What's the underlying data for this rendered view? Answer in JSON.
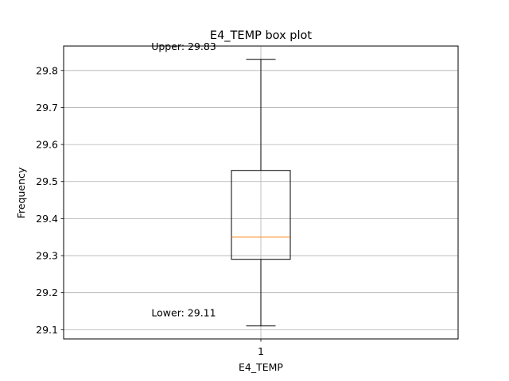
{
  "chart_data": {
    "type": "box",
    "title": "E4_TEMP box plot",
    "xlabel": "E4_TEMP",
    "ylabel": "Frequency",
    "categories": [
      "1"
    ],
    "ylim": [
      29.075,
      29.866
    ],
    "yticks": [
      29.1,
      29.2,
      29.3,
      29.4,
      29.5,
      29.6,
      29.7,
      29.8
    ],
    "grid": true,
    "boxes": [
      {
        "name": "E4_TEMP",
        "whisker_low": 29.11,
        "q1": 29.29,
        "median": 29.35,
        "q3": 29.53,
        "whisker_high": 29.83
      }
    ],
    "annotations": [
      {
        "text": "Upper: 29.83",
        "value": 29.83
      },
      {
        "text": "Lower: 29.11",
        "value": 29.11
      }
    ],
    "colors": {
      "box": "#000000",
      "median": "#ff7f0e",
      "grid": "#b0b0b0"
    }
  }
}
